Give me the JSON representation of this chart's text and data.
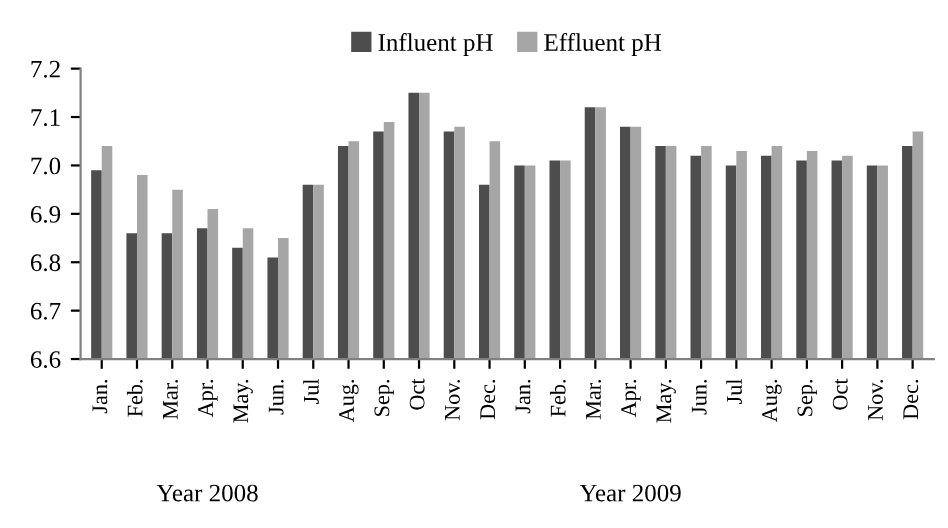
{
  "chart_data": {
    "type": "bar",
    "categories": [
      "Jan.",
      "Feb.",
      "Mar.",
      "Apr.",
      "May.",
      "Jun.",
      "Jul",
      "Aug.",
      "Sep.",
      "Oct",
      "Nov.",
      "Dec.",
      "Jan.",
      "Feb.",
      "Mar.",
      "Apr.",
      "May.",
      "Jun.",
      "Jul",
      "Aug.",
      "Sep.",
      "Oct",
      "Nov.",
      "Dec."
    ],
    "series": [
      {
        "name": "Influent pH",
        "color": "#4d4d4d",
        "values": [
          6.99,
          6.86,
          6.86,
          6.87,
          6.83,
          6.81,
          6.96,
          7.04,
          7.07,
          7.15,
          7.07,
          6.96,
          7.0,
          7.01,
          7.12,
          7.08,
          7.04,
          7.02,
          7.0,
          7.02,
          7.01,
          7.01,
          7.0,
          7.04
        ]
      },
      {
        "name": "Effluent pH",
        "color": "#a6a6a6",
        "values": [
          7.04,
          6.98,
          6.95,
          6.91,
          6.87,
          6.85,
          6.96,
          7.05,
          7.09,
          7.15,
          7.08,
          7.05,
          7.0,
          7.01,
          7.12,
          7.08,
          7.04,
          7.04,
          7.03,
          7.04,
          7.03,
          7.02,
          7.0,
          7.07
        ]
      }
    ],
    "ylim": [
      6.6,
      7.2
    ],
    "yticks": [
      {
        "value": 6.6,
        "label": "6.6"
      },
      {
        "value": 6.7,
        "label": "6.7"
      },
      {
        "value": 6.8,
        "label": "6.8"
      },
      {
        "value": 6.9,
        "label": "6.9"
      },
      {
        "value": 7.0,
        "label": "7.0"
      },
      {
        "value": 7.1,
        "label": "7.1"
      },
      {
        "value": 7.2,
        "label": "7.2"
      }
    ],
    "annotations": [
      "Year 2008",
      "Year 2009"
    ],
    "legend": "top",
    "grid": false
  }
}
